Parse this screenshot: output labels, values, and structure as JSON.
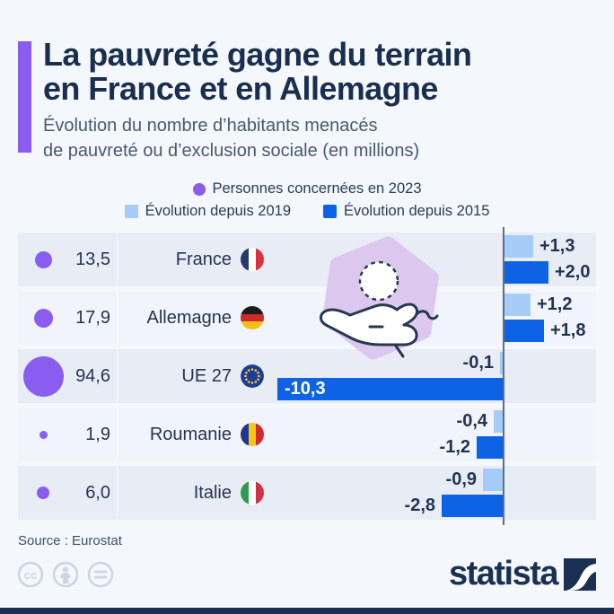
{
  "header": {
    "title": [
      "La pauvreté gagne du terrain",
      "en France et en Allemagne"
    ],
    "subtitle": [
      "Évolution du nombre d’habitants menacés",
      "de pauvreté ou d’exclusion sociale (en millions)"
    ]
  },
  "legend": {
    "persons": {
      "label": "Personnes concernées en 2023",
      "color": "#8a5cf0"
    },
    "since2019": {
      "label": "Évolution depuis 2019",
      "color": "#a5ccf6"
    },
    "since2015": {
      "label": "Évolution depuis 2015",
      "color": "#0e62e6"
    }
  },
  "chart_data": {
    "type": "bar",
    "title": "La pauvreté gagne du terrain en France et en Allemagne",
    "subtitle": "Évolution du nombre d’habitants menacés de pauvreté ou d’exclusion sociale (en millions)",
    "unit": "millions de personnes",
    "legend_position": "top",
    "axis": {
      "orientation": "horizontal-diverging",
      "zero_line": true
    },
    "colors": {
      "bubble": "#8a5cf0",
      "since2019": "#a5ccf6",
      "since2015": "#0e62e6",
      "row_odd": "#e8edf5",
      "row_even": "#f1f4fa"
    },
    "rows": [
      {
        "country": "France",
        "flag": "france",
        "persons_2023": 13.5,
        "persons_2023_label": "13,5",
        "since_2019": 1.3,
        "since_2019_label": "+1,3",
        "since_2015": 2.0,
        "since_2015_label": "+2,0"
      },
      {
        "country": "Allemagne",
        "flag": "germany",
        "persons_2023": 17.9,
        "persons_2023_label": "17,9",
        "since_2019": 1.2,
        "since_2019_label": "+1,2",
        "since_2015": 1.8,
        "since_2015_label": "+1,8"
      },
      {
        "country": "UE 27",
        "flag": "eu",
        "persons_2023": 94.6,
        "persons_2023_label": "94,6",
        "since_2019": -0.1,
        "since_2019_label": "-0,1",
        "since_2015": -10.3,
        "since_2015_label": "-10,3",
        "since_2015_label_inside": true
      },
      {
        "country": "Roumanie",
        "flag": "romania",
        "persons_2023": 1.9,
        "persons_2023_label": "1,9",
        "since_2019": -0.4,
        "since_2019_label": "-0,4",
        "since_2015": -1.2,
        "since_2015_label": "-1,2"
      },
      {
        "country": "Italie",
        "flag": "italy",
        "persons_2023": 6.0,
        "persons_2023_label": "6,0",
        "since_2019": -0.9,
        "since_2019_label": "-0,9",
        "since_2015": -2.8,
        "since_2015_label": "-2,8"
      }
    ]
  },
  "footer": {
    "source": "Source : Eurostat",
    "brand": "statista"
  }
}
